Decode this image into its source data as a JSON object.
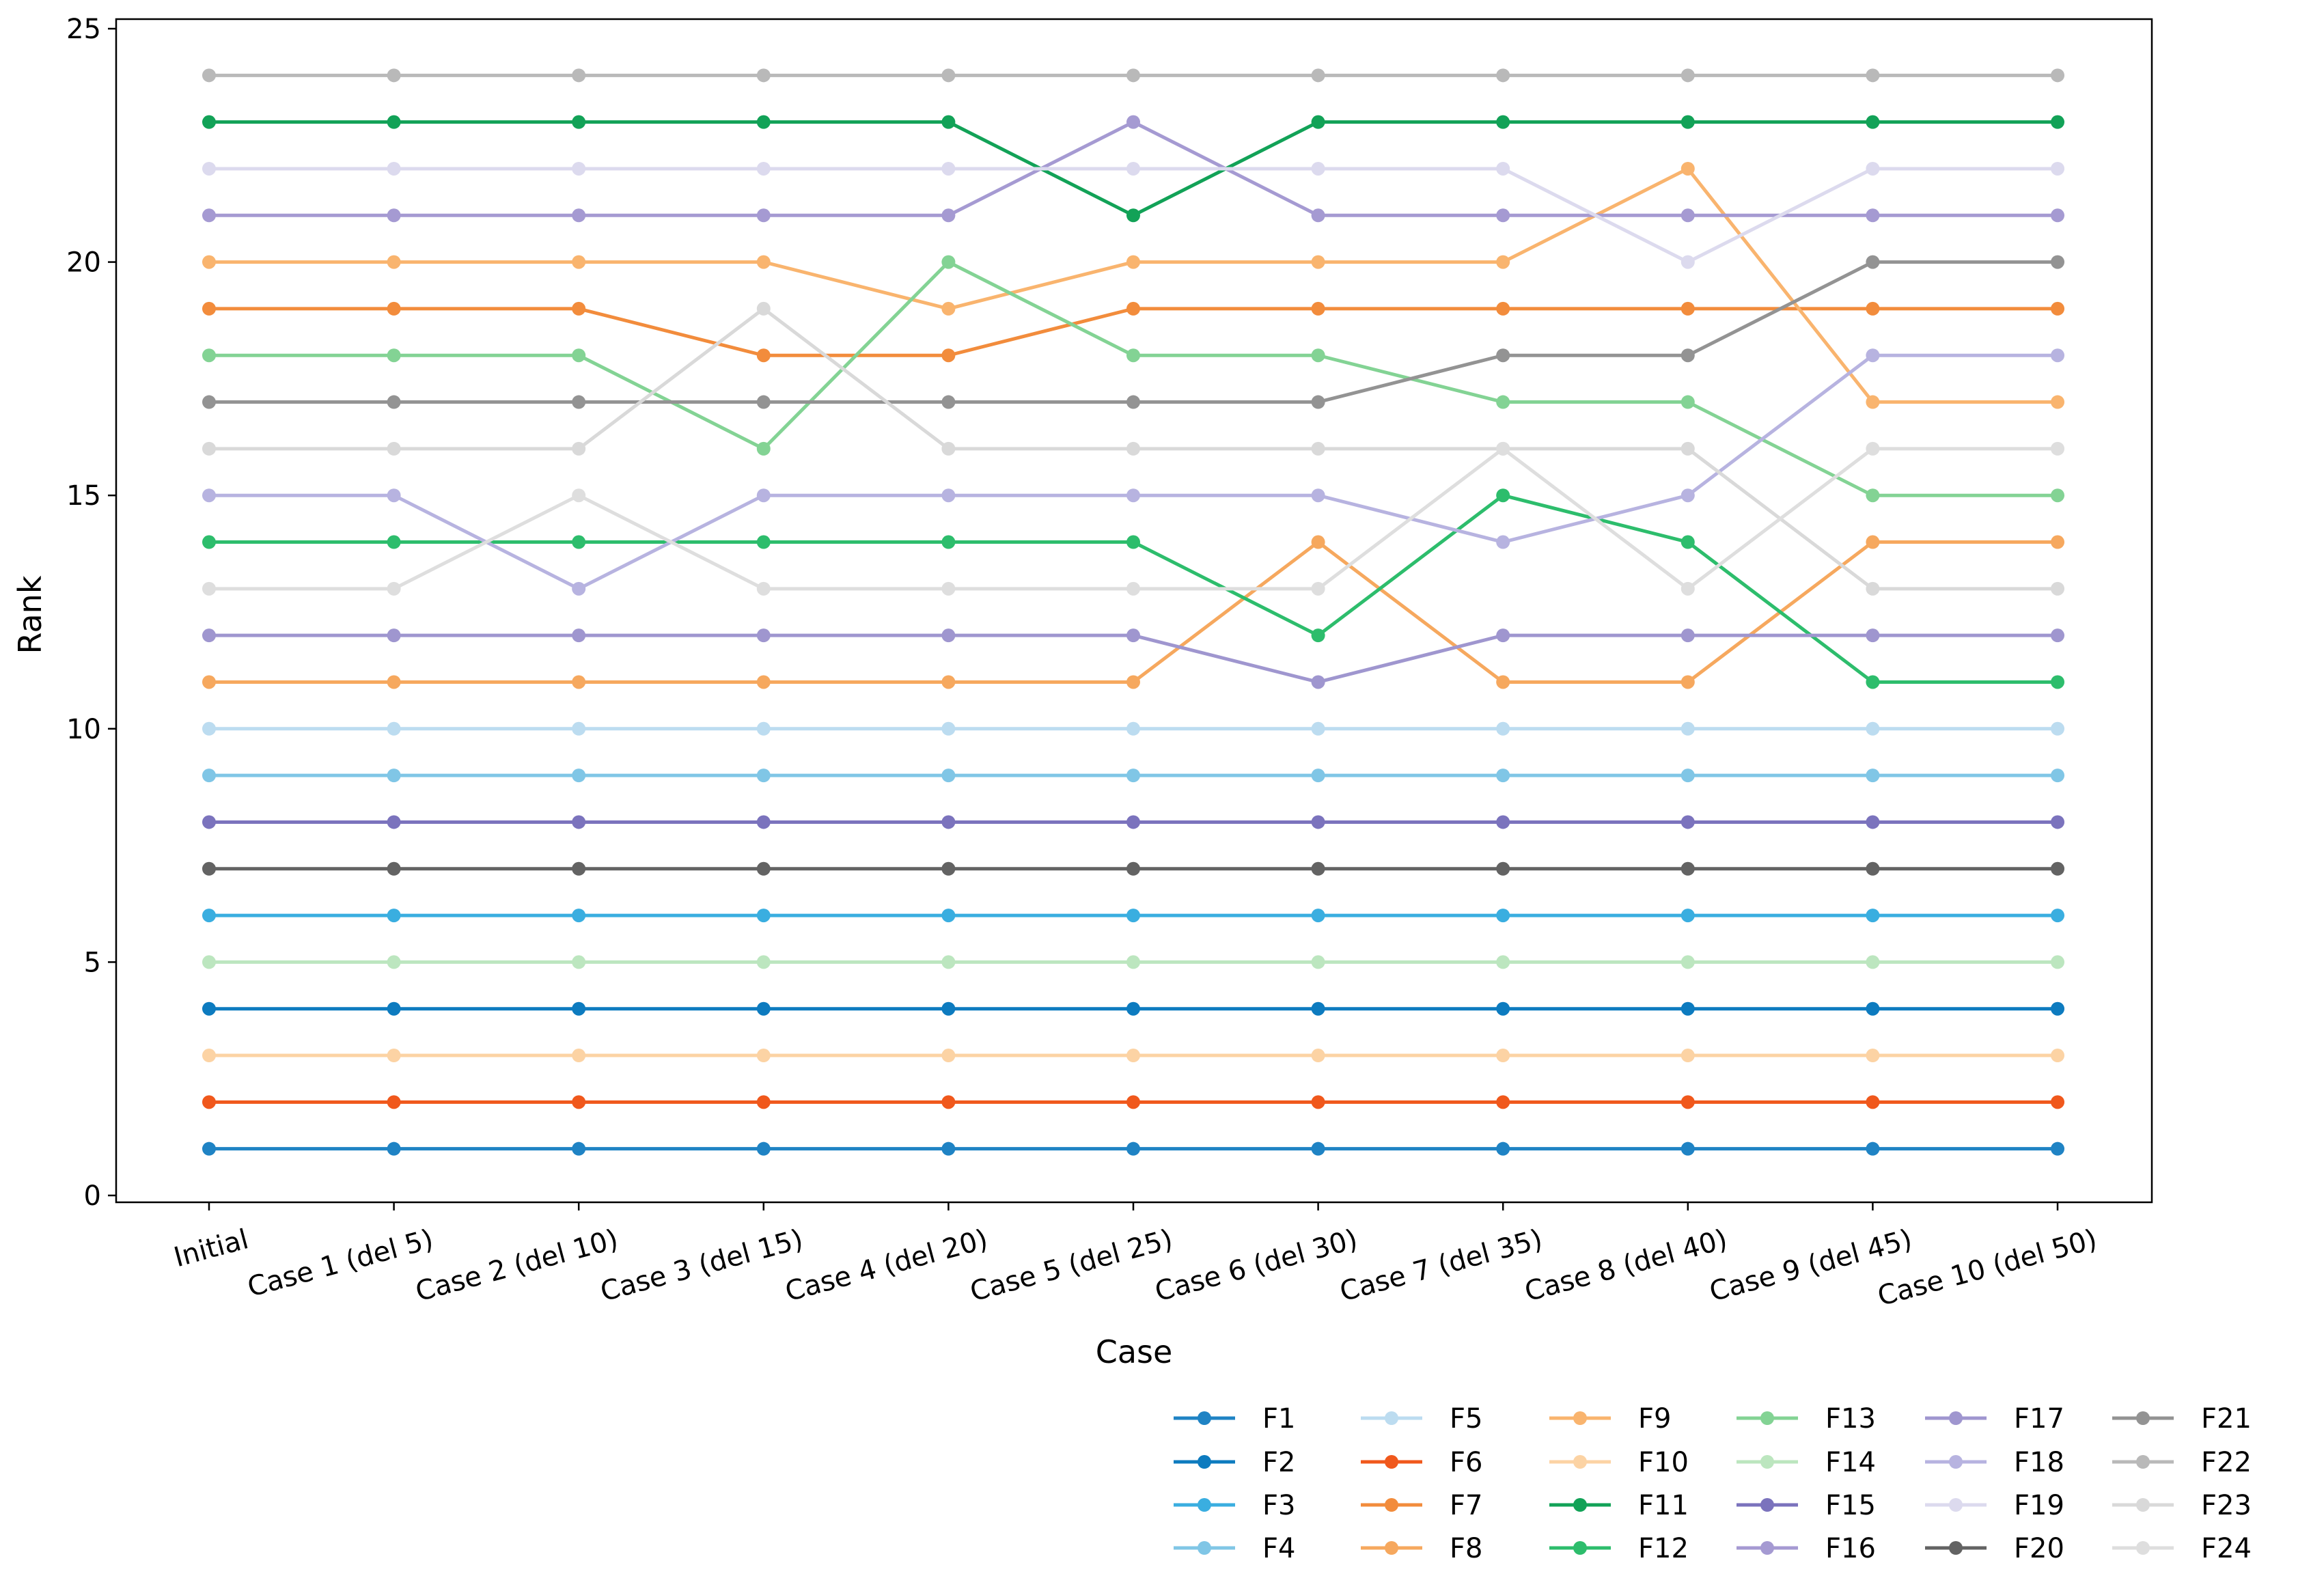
{
  "chart_data": {
    "type": "line",
    "title": "",
    "xlabel": "Case",
    "ylabel": "Rank",
    "categories": [
      "Initial",
      "Case 1 (del 5)",
      "Case 2 (del 10)",
      "Case 3 (del 15)",
      "Case 4 (del 20)",
      "Case 5 (del 25)",
      "Case 6 (del 30)",
      "Case 7 (del 35)",
      "Case 8 (del 40)",
      "Case 9 (del 45)",
      "Case 10 (del 50)"
    ],
    "ylim": [
      0,
      25
    ],
    "yticks": [
      "0",
      "5",
      "10",
      "15",
      "20",
      "25"
    ],
    "grid": false,
    "legend_position": "bottom-right",
    "legend_columns": 6,
    "series": [
      {
        "name": "F1",
        "color": "#1f83c4",
        "values": [
          1,
          1,
          1,
          1,
          1,
          1,
          1,
          1,
          1,
          1,
          1
        ]
      },
      {
        "name": "F2",
        "color": "#0d7bbf",
        "values": [
          4,
          4,
          4,
          4,
          4,
          4,
          4,
          4,
          4,
          4,
          4
        ]
      },
      {
        "name": "F3",
        "color": "#3aaee0",
        "values": [
          6,
          6,
          6,
          6,
          6,
          6,
          6,
          6,
          6,
          6,
          6
        ]
      },
      {
        "name": "F4",
        "color": "#80c6e6",
        "values": [
          9,
          9,
          9,
          9,
          9,
          9,
          9,
          9,
          9,
          9,
          9
        ]
      },
      {
        "name": "F5",
        "color": "#bcdcf0",
        "values": [
          10,
          10,
          10,
          10,
          10,
          10,
          10,
          10,
          10,
          10,
          10
        ]
      },
      {
        "name": "F6",
        "color": "#f0581c",
        "values": [
          2,
          2,
          2,
          2,
          2,
          2,
          2,
          2,
          2,
          2,
          2
        ]
      },
      {
        "name": "F7",
        "color": "#f28c3c",
        "values": [
          19,
          19,
          19,
          18,
          18,
          19,
          19,
          19,
          19,
          19,
          19
        ]
      },
      {
        "name": "F8",
        "color": "#f6a85e",
        "values": [
          11,
          11,
          11,
          11,
          11,
          11,
          14,
          11,
          11,
          14,
          14
        ]
      },
      {
        "name": "F9",
        "color": "#f9b46e",
        "values": [
          20,
          20,
          20,
          20,
          19,
          20,
          20,
          20,
          22,
          17,
          17
        ]
      },
      {
        "name": "F10",
        "color": "#fcd3a4",
        "values": [
          3,
          3,
          3,
          3,
          3,
          3,
          3,
          3,
          3,
          3,
          3
        ]
      },
      {
        "name": "F11",
        "color": "#12a257",
        "values": [
          23,
          23,
          23,
          23,
          23,
          21,
          23,
          23,
          23,
          23,
          23
        ]
      },
      {
        "name": "F12",
        "color": "#2dbd6c",
        "values": [
          14,
          14,
          14,
          14,
          14,
          14,
          12,
          15,
          14,
          11,
          11
        ]
      },
      {
        "name": "F13",
        "color": "#83d394",
        "values": [
          18,
          18,
          18,
          16,
          20,
          18,
          18,
          17,
          17,
          15,
          15
        ]
      },
      {
        "name": "F14",
        "color": "#bce6bf",
        "values": [
          5,
          5,
          5,
          5,
          5,
          5,
          5,
          5,
          5,
          5,
          5
        ]
      },
      {
        "name": "F15",
        "color": "#7b73bd",
        "values": [
          8,
          8,
          8,
          8,
          8,
          8,
          8,
          8,
          8,
          8,
          8
        ]
      },
      {
        "name": "F16",
        "color": "#a59ad2",
        "values": [
          21,
          21,
          21,
          21,
          21,
          23,
          21,
          21,
          21,
          21,
          21
        ]
      },
      {
        "name": "F17",
        "color": "#9f96cf",
        "values": [
          12,
          12,
          12,
          12,
          12,
          12,
          11,
          12,
          12,
          12,
          12
        ]
      },
      {
        "name": "F18",
        "color": "#b7b3e0",
        "values": [
          15,
          15,
          13,
          15,
          15,
          15,
          15,
          14,
          15,
          18,
          18
        ]
      },
      {
        "name": "F19",
        "color": "#dcdaee",
        "values": [
          22,
          22,
          22,
          22,
          22,
          22,
          22,
          22,
          20,
          22,
          22
        ]
      },
      {
        "name": "F20",
        "color": "#636363",
        "values": [
          7,
          7,
          7,
          7,
          7,
          7,
          7,
          7,
          7,
          7,
          7
        ]
      },
      {
        "name": "F21",
        "color": "#939393",
        "values": [
          17,
          17,
          17,
          17,
          17,
          17,
          17,
          18,
          18,
          20,
          20
        ]
      },
      {
        "name": "F22",
        "color": "#b9b9b9",
        "values": [
          24,
          24,
          24,
          24,
          24,
          24,
          24,
          24,
          24,
          24,
          24
        ]
      },
      {
        "name": "F23",
        "color": "#d9d9d9",
        "values": [
          16,
          16,
          16,
          19,
          16,
          16,
          16,
          16,
          16,
          13,
          13
        ]
      },
      {
        "name": "F24",
        "color": "#dedede",
        "values": [
          13,
          13,
          15,
          13,
          13,
          13,
          13,
          16,
          13,
          16,
          16
        ]
      }
    ]
  }
}
